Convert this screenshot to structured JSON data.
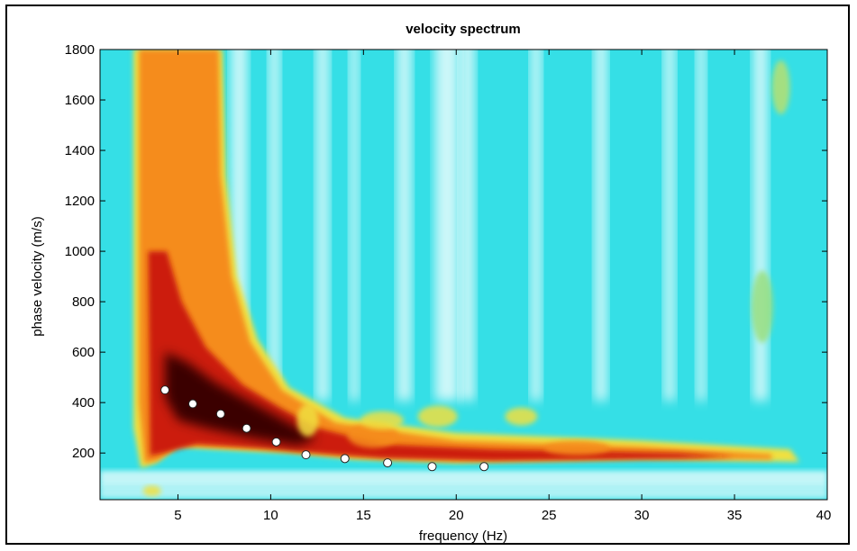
{
  "chart_data": {
    "type": "heatmap",
    "title": "velocity spectrum",
    "xlabel": "frequency (Hz)",
    "ylabel": "phase velocity (m/s)",
    "xlim": [
      0.8,
      40
    ],
    "ylim": [
      15,
      1800
    ],
    "x_ticks": [
      5,
      10,
      15,
      20,
      25,
      30,
      35,
      40
    ],
    "y_ticks": [
      200,
      400,
      600,
      800,
      1000,
      1200,
      1400,
      1600,
      1800
    ],
    "colormap": [
      "#ffffff",
      "#33e0e8",
      "#f0e040",
      "#f58c1e",
      "#cc1a10",
      "#3a0000"
    ],
    "picked_points": [
      {
        "x": 4.3,
        "y": 450
      },
      {
        "x": 5.8,
        "y": 395
      },
      {
        "x": 7.3,
        "y": 355
      },
      {
        "x": 8.7,
        "y": 298
      },
      {
        "x": 10.3,
        "y": 244
      },
      {
        "x": 11.9,
        "y": 193
      },
      {
        "x": 14.0,
        "y": 178
      },
      {
        "x": 16.3,
        "y": 161
      },
      {
        "x": 18.7,
        "y": 146
      },
      {
        "x": 21.5,
        "y": 146
      }
    ],
    "grid": false,
    "legend": "none"
  }
}
